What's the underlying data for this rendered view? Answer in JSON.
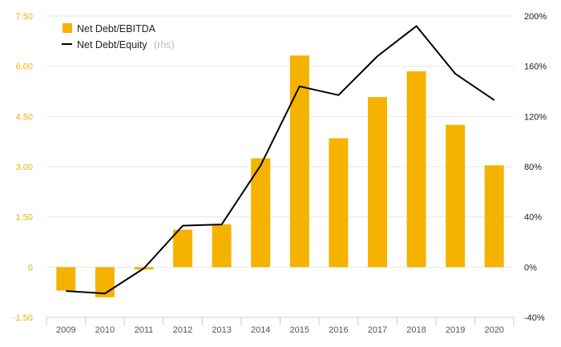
{
  "chart_data": {
    "type": "bar",
    "categories": [
      "2009",
      "2010",
      "2011",
      "2012",
      "2013",
      "2014",
      "2015",
      "2016",
      "2017",
      "2018",
      "2019",
      "2020"
    ],
    "series": [
      {
        "name": "Net Debt/EBITDA",
        "type": "bar",
        "axis": "left",
        "color": "#f5b300",
        "values": [
          -0.7,
          -0.9,
          -0.07,
          1.12,
          1.28,
          3.25,
          6.32,
          3.85,
          5.08,
          5.85,
          4.25,
          3.04
        ]
      },
      {
        "name": "Net Debt/Equity",
        "name_suffix": "(rhs)",
        "type": "line",
        "axis": "right",
        "color": "#000000",
        "values": [
          -19,
          -21,
          -1,
          33,
          34,
          81,
          144,
          137,
          168,
          192,
          154,
          133
        ]
      }
    ],
    "y_left": {
      "range": [
        -1.5,
        7.5
      ],
      "ticks": [
        "7.50",
        "6.00",
        "4.50",
        "3.00",
        "1.50",
        "0",
        "-1.50"
      ],
      "tick_values": [
        7.5,
        6.0,
        4.5,
        3.0,
        1.5,
        0,
        -1.5
      ],
      "tick_color": "#f0b000"
    },
    "y_right": {
      "range": [
        -40,
        200
      ],
      "ticks": [
        "200%",
        "160%",
        "120%",
        "80%",
        "40%",
        "0%",
        "-40%"
      ],
      "tick_values": [
        200,
        160,
        120,
        80,
        40,
        0,
        -40
      ]
    },
    "legend_position": "top-left",
    "grid": "horizontal"
  }
}
